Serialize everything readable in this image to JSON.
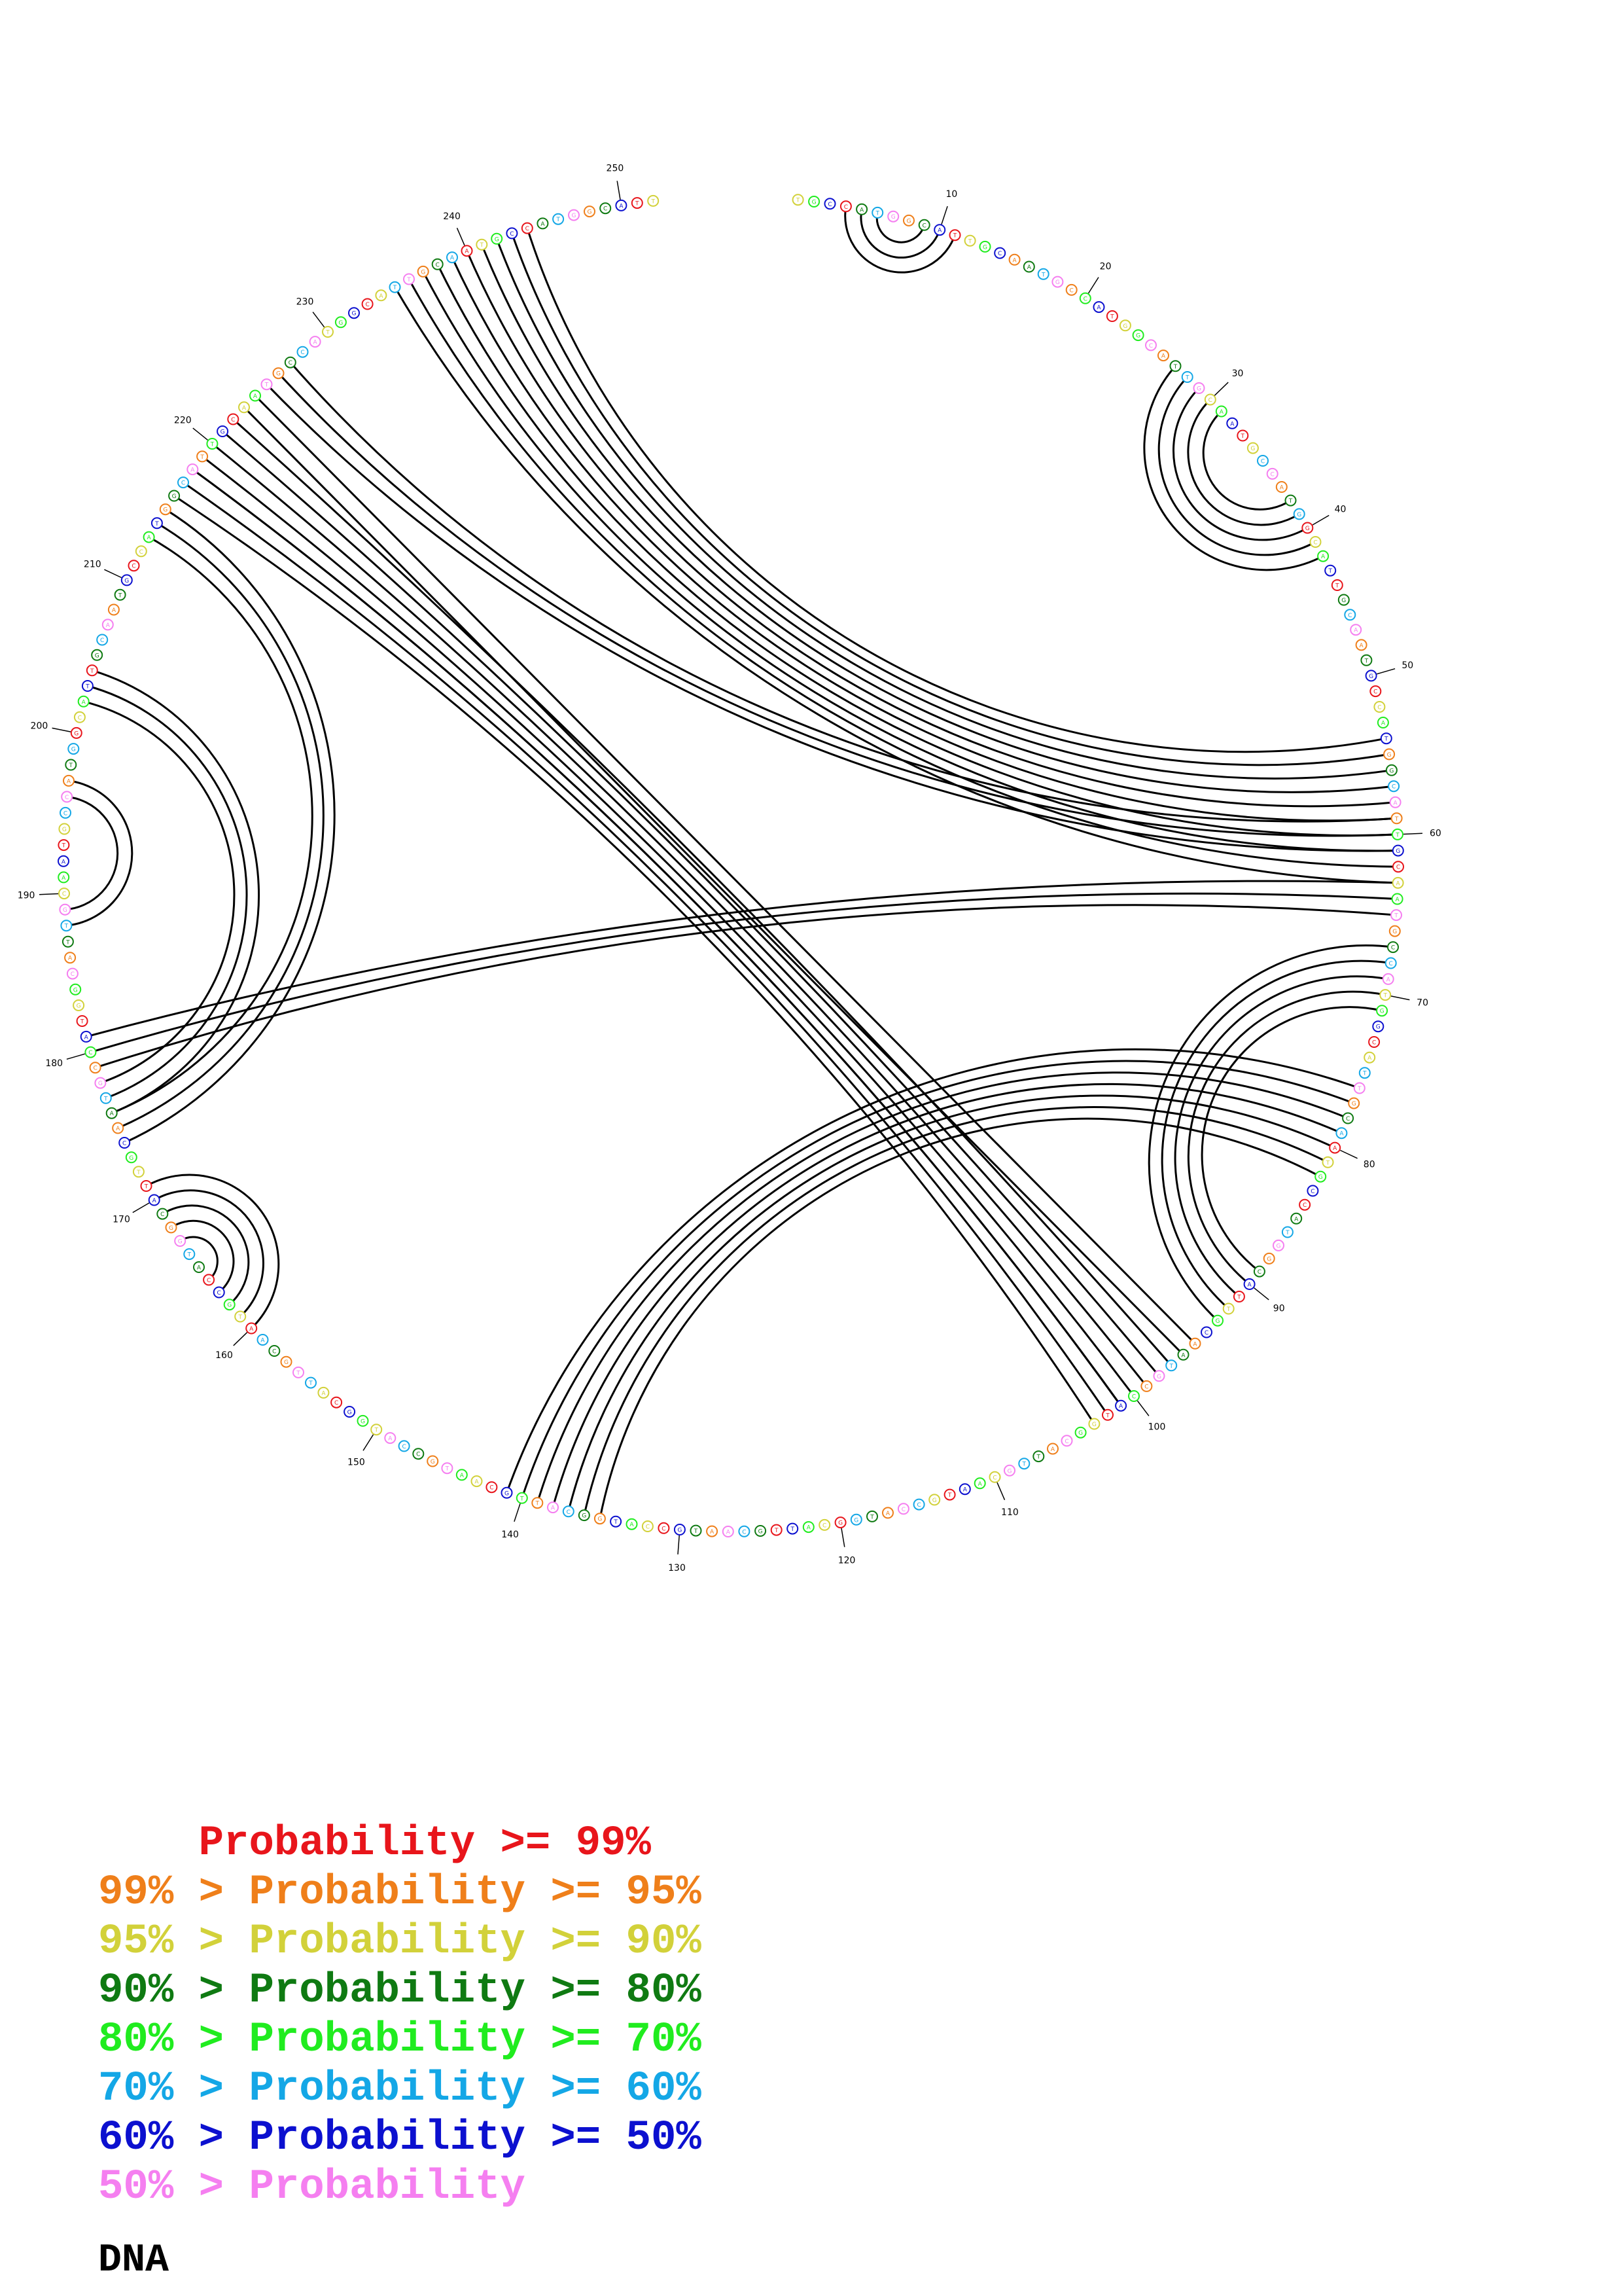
{
  "molecule_type": "DNA",
  "sequence_length": 252,
  "position_labels": [
    "10",
    "20",
    "30",
    "40",
    "50",
    "60",
    "70",
    "80",
    "90",
    "100",
    "110",
    "120",
    "130",
    "140",
    "150",
    "160",
    "170",
    "180",
    "190",
    "200",
    "210",
    "220",
    "230",
    "240",
    "250"
  ],
  "legend": [
    {
      "prefix": "    ",
      "text": "Probability >= 99%",
      "color": "#e8151b"
    },
    {
      "prefix": "99% > ",
      "text": "Probability >= 95%",
      "color": "#ef7f1a"
    },
    {
      "prefix": "95% > ",
      "text": "Probability >= 90%",
      "color": "#d2d13a"
    },
    {
      "prefix": "90% > ",
      "text": "Probability >= 80%",
      "color": "#0f7a12"
    },
    {
      "prefix": "80% > ",
      "text": "Probability >= 70%",
      "color": "#20ec1f"
    },
    {
      "prefix": "70% > ",
      "text": "Probability >= 60%",
      "color": "#14a7e6"
    },
    {
      "prefix": "60% > ",
      "text": "Probability >= 50%",
      "color": "#0c10cf"
    },
    {
      "prefix": "50% > ",
      "text": "Probability",
      "color": "#f57ff0"
    }
  ],
  "helices": [
    {
      "i": 4,
      "j": 11,
      "len": 3
    },
    {
      "i": 27,
      "j": 42,
      "len": 5
    },
    {
      "i": 54,
      "j": 244,
      "len": 10
    },
    {
      "i": 59,
      "j": 227,
      "len": 3
    },
    {
      "i": 63,
      "j": 181,
      "len": 3
    },
    {
      "i": 67,
      "j": 93,
      "len": 5
    },
    {
      "i": 76,
      "j": 141,
      "len": 7
    },
    {
      "i": 95,
      "j": 224,
      "len": 7
    },
    {
      "i": 101,
      "j": 218,
      "len": 3
    },
    {
      "i": 160,
      "j": 171,
      "len": 5
    },
    {
      "i": 174,
      "j": 215,
      "len": 3
    },
    {
      "i": 176,
      "j": 204,
      "len": 3
    },
    {
      "i": 188,
      "j": 197,
      "len": 2
    }
  ]
}
